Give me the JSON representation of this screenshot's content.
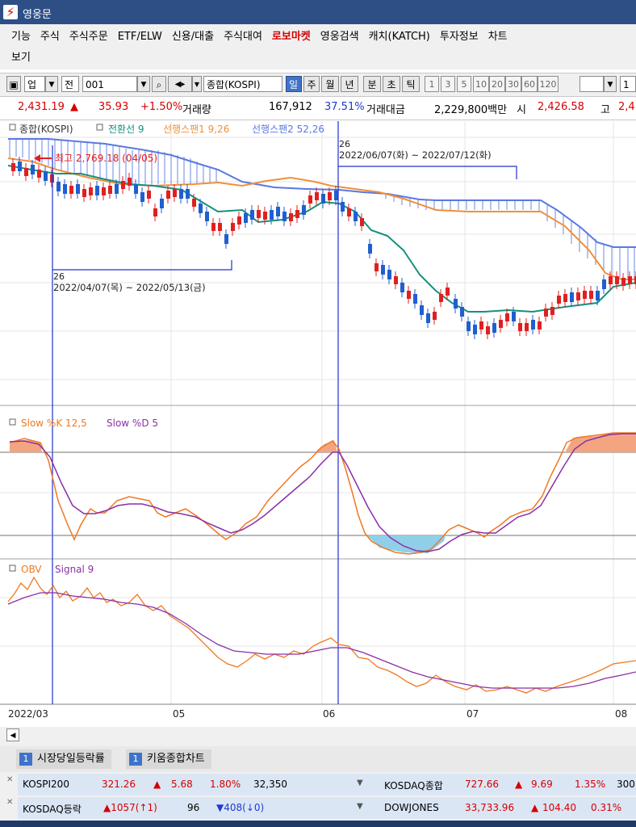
{
  "window": {
    "title": "영웅문",
    "logo_glyph": "⚡"
  },
  "menu": {
    "items": [
      "기능",
      "주식",
      "주식주문",
      "ETF/ELW",
      "신용/대출",
      "주식대여",
      "로보마켓",
      "영웅검색",
      "캐치(KATCH)",
      "투자정보",
      "차트",
      "보기"
    ]
  },
  "toolbar": {
    "market": "업",
    "prev": "전",
    "code": "001",
    "name": "종합(KOSPI)",
    "periods": [
      "일",
      "주",
      "월",
      "년",
      "분",
      "초",
      "틱"
    ],
    "intervals": [
      "1",
      "3",
      "5",
      "10",
      "20",
      "30",
      "60",
      "120"
    ],
    "trailing": "1"
  },
  "quote": {
    "price": "2,431.19",
    "arrow": "▲",
    "change": "35.93",
    "change_pct": "+1.50%",
    "volume_label": "거래량",
    "volume": "167,912",
    "volume_pct": "37.51%",
    "amount_label": "거래대금",
    "amount": "2,229,800백만",
    "open_label": "시",
    "open": "2,426.58",
    "high_label": "고",
    "high": "2,4"
  },
  "price_panel": {
    "legend": [
      {
        "label": "종합(KOSPI)",
        "color": "#333333"
      },
      {
        "label": "전환선 9",
        "color": "#16907c"
      },
      {
        "label": "선행스팬1 9,26",
        "color": "#f0903a"
      },
      {
        "label": "선행스팬2 52,26",
        "color": "#5a78e0"
      }
    ],
    "high_annotation": "최고 2,769.18 (04/05)",
    "range1": {
      "count": "26",
      "range": "2022/04/07(목) ~ 2022/05/13(금)"
    },
    "range2": {
      "count": "26",
      "range": "2022/06/07(화) ~ 2022/07/12(화)"
    }
  },
  "stoch_panel": {
    "legend": [
      {
        "label": "Slow %K 12,5",
        "color": "#f07820"
      },
      {
        "label": "Slow %D 5",
        "color": "#8b2fa8"
      }
    ]
  },
  "obv_panel": {
    "legend": [
      {
        "label": "OBV",
        "color": "#f07820"
      },
      {
        "label": "Signal 9",
        "color": "#8b2fa8"
      }
    ]
  },
  "x_axis": {
    "labels": [
      "2022/03",
      "05",
      "06",
      "07",
      "08"
    ]
  },
  "colors": {
    "up": "#e02020",
    "down": "#1f5fd0",
    "accent": "#3e73c9"
  },
  "bottom": {
    "tabs": [
      {
        "num": "1",
        "label": "시장당일등락률"
      },
      {
        "num": "1",
        "label": "키움종합차트"
      }
    ],
    "rows": [
      {
        "name": "KOSPI200",
        "value": "321.26",
        "arrow": "▲",
        "change": "5.68",
        "pct": "1.80%",
        "vol": "32,350",
        "name2": "KOSDAQ종합",
        "value2": "727.66",
        "arrow2": "▲",
        "change2": "9.69",
        "pct2": "1.35%",
        "vol2": "300,"
      },
      {
        "name": "KOSDAQ등락",
        "value": "▲1057(↑1)",
        "arrow": "",
        "change": "96",
        "pct": "▼408(↓0)",
        "vol": "",
        "name2": "DOWJONES",
        "value2": "33,733.96",
        "arrow2": "▲",
        "change2": "104.40",
        "pct2": "0.31%",
        "vol2": ""
      }
    ]
  }
}
